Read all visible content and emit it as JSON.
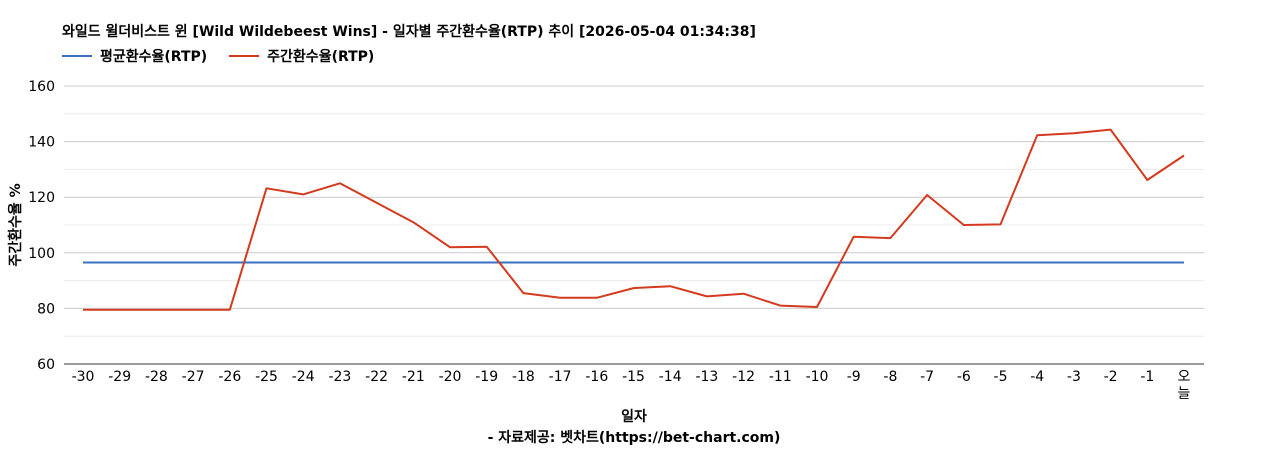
{
  "chart_data": {
    "type": "line",
    "title": "와일드 윌더비스트 윈 [Wild Wildebeest Wins] - 일자별 주간환수율(RTP) 추이 [2026-05-04 01:34:38]",
    "xlabel": "일자",
    "ylabel": "주간환수율 %",
    "source": "- 자료제공: 벳차트(https://bet-chart.com)",
    "categories": [
      "-30",
      "-29",
      "-28",
      "-27",
      "-26",
      "-25",
      "-24",
      "-23",
      "-22",
      "-21",
      "-20",
      "-19",
      "-18",
      "-17",
      "-16",
      "-15",
      "-14",
      "-13",
      "-12",
      "-11",
      "-10",
      "-9",
      "-8",
      "-7",
      "-6",
      "-5",
      "-4",
      "-3",
      "-2",
      "-1",
      "오늘"
    ],
    "ylim": [
      60,
      160
    ],
    "yticks": [
      60,
      80,
      100,
      120,
      140,
      160
    ],
    "grid": true,
    "legend_position": "top-left",
    "series": [
      {
        "name": "평균환수율(RTP)",
        "color": "#3a6fc4",
        "values": [
          96.5,
          96.5,
          96.5,
          96.5,
          96.5,
          96.5,
          96.5,
          96.5,
          96.5,
          96.5,
          96.5,
          96.5,
          96.5,
          96.5,
          96.5,
          96.5,
          96.5,
          96.5,
          96.5,
          96.5,
          96.5,
          96.5,
          96.5,
          96.5,
          96.5,
          96.5,
          96.5,
          96.5,
          96.5,
          96.5,
          96.5
        ]
      },
      {
        "name": "주간환수율(RTP)",
        "color": "#d33a1e",
        "values": [
          79.5,
          79.5,
          79.5,
          79.5,
          79.5,
          123.2,
          121.0,
          125.0,
          118.0,
          111.0,
          102.0,
          102.2,
          85.5,
          83.8,
          83.8,
          87.3,
          88.0,
          84.3,
          85.3,
          81.0,
          80.5,
          105.8,
          105.3,
          120.8,
          110.0,
          110.2,
          142.3,
          143.0,
          144.3,
          126.2,
          135.0
        ]
      }
    ]
  }
}
